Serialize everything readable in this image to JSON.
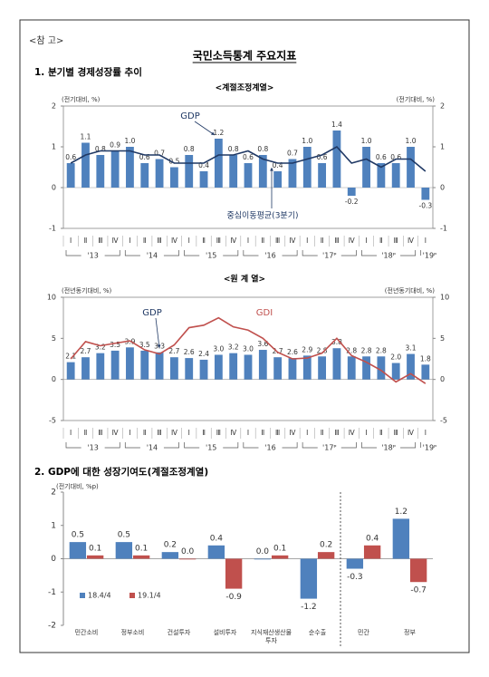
{
  "header": {
    "note": "<참 고>",
    "title": "국민소득통계 주요지표"
  },
  "sections": [
    "1. 분기별 경제성장률 추이"
  ],
  "chart_data": [
    {
      "type": "combo",
      "title": "<계절조정계열>",
      "y_label": "(전기대비, %)",
      "y2_label": "(전기대비, %)",
      "categories": [
        "Ⅰ",
        "Ⅱ",
        "Ⅲ",
        "Ⅳ",
        "Ⅰ",
        "Ⅱ",
        "Ⅲ",
        "Ⅳ",
        "Ⅰ",
        "Ⅱ",
        "Ⅲ",
        "Ⅳ",
        "Ⅰ",
        "Ⅱ",
        "Ⅲ",
        "Ⅳ",
        "Ⅰ",
        "Ⅱ",
        "Ⅲ",
        "Ⅳ",
        "Ⅰ",
        "Ⅱ",
        "Ⅲ",
        "Ⅳ",
        "Ⅰ"
      ],
      "years": [
        "'13",
        "'14",
        "'15",
        "'16",
        "'17ᴾ",
        "'18ᴾ",
        "'19ᴾ"
      ],
      "series": [
        {
          "name": "GDP",
          "type": "bar",
          "color": "#4f81bd",
          "values": [
            0.6,
            1.1,
            0.8,
            0.9,
            1.0,
            0.6,
            0.7,
            0.5,
            0.8,
            0.4,
            1.2,
            0.8,
            0.6,
            0.8,
            0.4,
            0.7,
            1.0,
            0.6,
            1.4,
            -0.2,
            1.0,
            0.6,
            0.6,
            1.0,
            -0.3
          ],
          "value_labels": [
            "0.6",
            "1.1",
            "0.8",
            "0.9",
            "1.0",
            "0.6",
            "0.7",
            "0.5",
            "0.8",
            "0.4",
            "1.2",
            "0.8",
            "0.6",
            "0.8",
            "0.4",
            "0.7",
            "1.0",
            "0.6",
            "1.4",
            "-0.2",
            "1.0",
            "0.6",
            "0.6",
            "1.0",
            "-0.3"
          ]
        },
        {
          "name": "중심이동평균(3분기)",
          "type": "line",
          "color": "#1f3864",
          "values": [
            0.6,
            0.8,
            0.9,
            0.9,
            0.9,
            0.8,
            0.8,
            0.6,
            0.6,
            0.6,
            0.8,
            0.8,
            0.9,
            0.7,
            0.6,
            0.6,
            0.7,
            0.8,
            1.0,
            0.6,
            0.7,
            0.5,
            0.7,
            0.7,
            0.4
          ]
        }
      ],
      "ylim": [
        -1,
        2
      ],
      "yticks": [
        -1,
        0,
        1,
        2
      ],
      "y2lim": [
        -1,
        2
      ],
      "y2ticks": [
        -1,
        0,
        1,
        2
      ]
    },
    {
      "type": "combo",
      "title": "<원 계 열>",
      "y_label": "(전년동기대비, %)",
      "y2_label": "(전년동기대비, %)",
      "categories": [
        "Ⅰ",
        "Ⅱ",
        "Ⅲ",
        "Ⅳ",
        "Ⅰ",
        "Ⅱ",
        "Ⅲ",
        "Ⅳ",
        "Ⅰ",
        "Ⅱ",
        "Ⅲ",
        "Ⅳ",
        "Ⅰ",
        "Ⅱ",
        "Ⅲ",
        "Ⅳ",
        "Ⅰ",
        "Ⅱ",
        "Ⅲ",
        "Ⅳ",
        "Ⅰ",
        "Ⅱ",
        "Ⅲ",
        "Ⅳ",
        "Ⅰ"
      ],
      "years": [
        "'13",
        "'14",
        "'15",
        "'16",
        "'17ᴾ",
        "'18ᴾ",
        "'19ᴾ"
      ],
      "series": [
        {
          "name": "GDP",
          "type": "bar",
          "color": "#4f81bd",
          "values": [
            2.1,
            2.7,
            3.2,
            3.5,
            3.9,
            3.5,
            3.3,
            2.7,
            2.6,
            2.4,
            3.0,
            3.2,
            3.0,
            3.6,
            2.7,
            2.6,
            2.9,
            2.8,
            3.8,
            2.8,
            2.8,
            2.8,
            2.0,
            3.1,
            1.8
          ],
          "value_labels": [
            "2.1",
            "2.7",
            "3.2",
            "3.5",
            "3.9",
            "3.5",
            "3.3",
            "2.7",
            "2.6",
            "2.4",
            "3.0",
            "3.2",
            "3.0",
            "3.6",
            "2.7",
            "2.6",
            "2.9",
            "2.8",
            "3.8",
            "2.8",
            "2.8",
            "2.8",
            "2.0",
            "3.1",
            "1.8"
          ]
        },
        {
          "name": "GDI",
          "type": "line",
          "color": "#c0504d",
          "axis": "y2",
          "values": [
            2.5,
            4.6,
            4.1,
            4.4,
            4.7,
            3.6,
            3.1,
            4.2,
            6.3,
            6.6,
            7.5,
            6.4,
            6.0,
            5.0,
            3.3,
            2.5,
            2.6,
            3.2,
            5.0,
            2.9,
            2.1,
            1.1,
            -0.3,
            0.7,
            -0.5
          ]
        }
      ],
      "ylim": [
        -5,
        10
      ],
      "yticks": [
        -5,
        0,
        5,
        10
      ],
      "y2lim": [
        -5,
        10
      ],
      "y2ticks": [
        -5,
        0,
        5,
        10
      ]
    },
    {
      "type": "bar",
      "title": "2. GDP에 대한 성장기여도(계절조정계열)",
      "y_label": "(전기대비, %p)",
      "categories": [
        "민간소비",
        "정부소비",
        "건설투자",
        "설비투자",
        "지식재산생산물투자",
        "순수출",
        "민간",
        "정부"
      ],
      "series": [
        {
          "name": "18.4/4",
          "color": "#4f81bd",
          "values": [
            0.5,
            0.5,
            0.2,
            0.4,
            0,
            -1.2,
            -0.3,
            1.2
          ],
          "value_labels": [
            "0.5",
            "0.5",
            "0.2",
            "0.4",
            "0.0",
            "-1.2",
            "-0.3",
            "1.2"
          ]
        },
        {
          "name": "19.1/4",
          "color": "#c0504d",
          "values": [
            0.1,
            0.1,
            0,
            -0.9,
            0.1,
            0.2,
            0.4,
            -0.7
          ],
          "value_labels": [
            "0.1",
            "0.1",
            "0.0",
            "-0.9",
            "0.1",
            "0.2",
            "0.4",
            "-0.7"
          ]
        }
      ],
      "ylim": [
        -2,
        2
      ],
      "yticks": [
        -2,
        -1,
        0,
        1,
        2
      ],
      "legend": "lower left"
    }
  ]
}
